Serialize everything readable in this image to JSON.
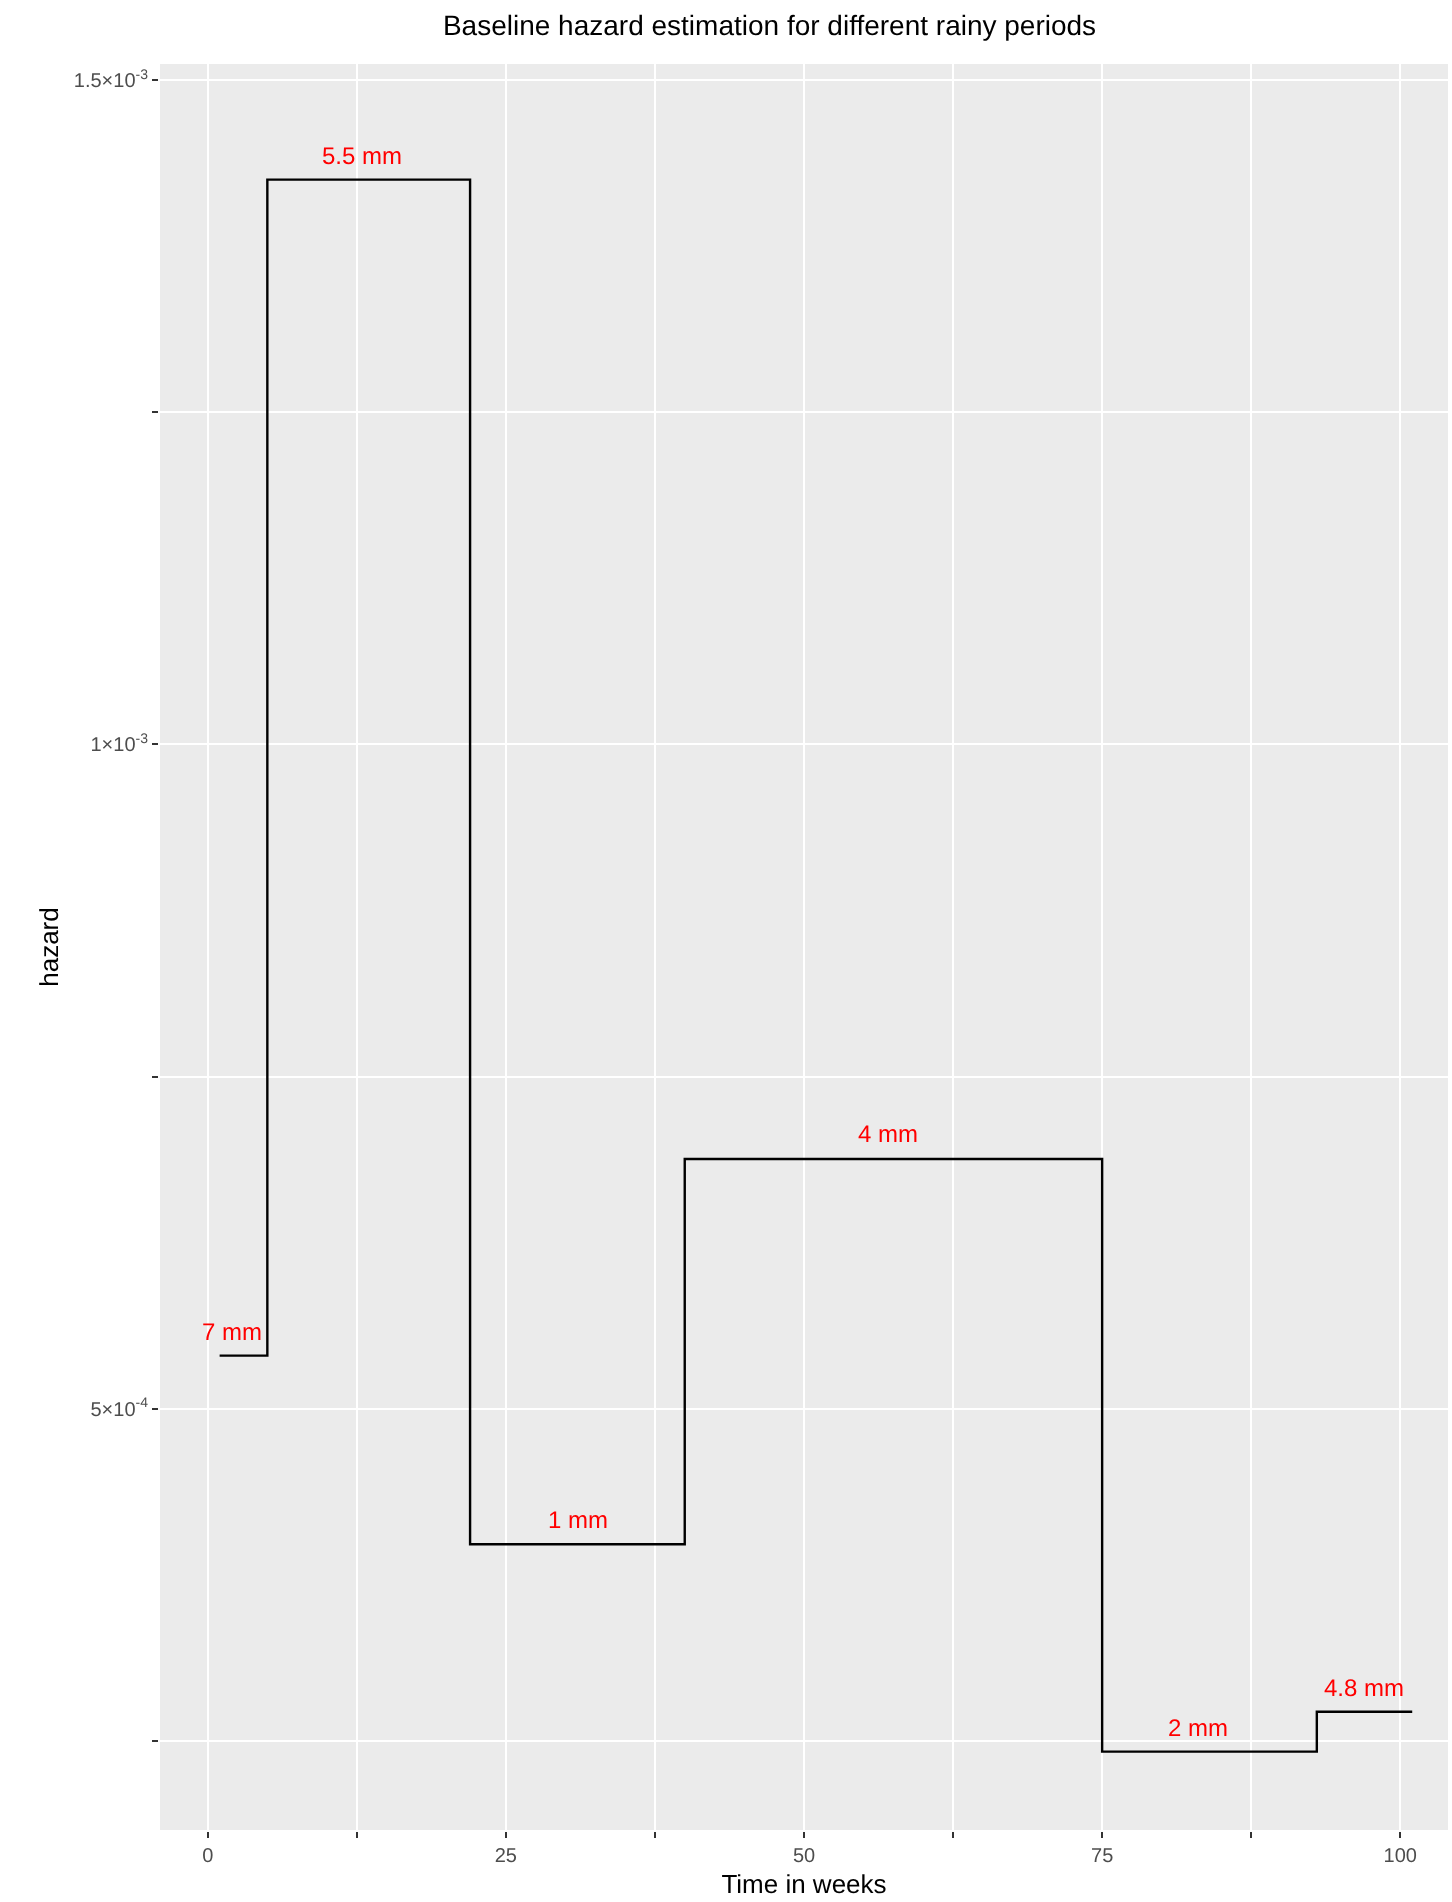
{
  "chart_data": {
    "type": "step",
    "title": "Baseline hazard estimation for different rainy periods",
    "xlabel": "Time in weeks",
    "ylabel": "hazard",
    "x": [
      1,
      5,
      22,
      40,
      75,
      93,
      101
    ],
    "series": [
      {
        "color": "#000000",
        "values": [
          0.00054,
          0.001425,
          0.000398,
          0.000688,
          0.000242,
          0.000272,
          0.000272
        ]
      }
    ],
    "xlim": [
      -4,
      104
    ],
    "xticks": [
      0,
      {
        "value": 12.5,
        "label": null
      },
      25,
      {
        "value": 37.5,
        "label": null
      },
      50,
      {
        "value": 62.5,
        "label": null
      },
      75,
      {
        "value": 87.5,
        "label": null
      },
      100
    ],
    "ylim": [
      0.000183,
      0.001512
    ],
    "yticks": [
      {
        "value": 0.00025,
        "label": null
      },
      {
        "value": 0.0005,
        "label": "5×10$^{-4}$"
      },
      {
        "value": 0.00075,
        "label": null
      },
      {
        "value": 0.001,
        "label": "1×10$^{-3}$"
      },
      {
        "value": 0.00125,
        "label": null
      },
      {
        "value": 0.0015,
        "label": "1.5×10$^{-3}$"
      }
    ],
    "grid": true,
    "legend": false,
    "marker": "none",
    "line_style": "solid",
    "annotations": [
      {
        "text": "7 mm",
        "x": 2,
        "y": 0.00054
      },
      {
        "text": "5.5 mm",
        "x": 13,
        "y": 0.001425
      },
      {
        "text": "1 mm",
        "x": 31,
        "y": 0.000398
      },
      {
        "text": "4 mm",
        "x": 57,
        "y": 0.000688
      },
      {
        "text": "2 mm",
        "x": 83,
        "y": 0.000242
      },
      {
        "text": "4.8 mm",
        "x": 97,
        "y": 0.000272
      }
    ]
  }
}
